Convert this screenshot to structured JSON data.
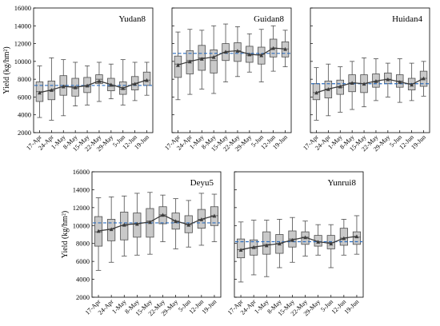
{
  "chart_data": [
    {
      "type": "box",
      "title": "Yudan8",
      "ylabel": "Yield (kg/hm²)",
      "ylim": [
        2000,
        16000
      ],
      "yticks": [
        2000,
        4000,
        6000,
        8000,
        10000,
        12000,
        14000,
        16000
      ],
      "categories": [
        "17-Apr",
        "24-Apr",
        "1-May",
        "8-May",
        "15-May",
        "22-May",
        "29-May",
        "5-Jun",
        "12-Jun",
        "19-Jun"
      ],
      "reference_line": 7300,
      "boxes": [
        {
          "min": 3700,
          "q1": 5500,
          "median": 6600,
          "q3": 7700,
          "max": 9500
        },
        {
          "min": 3400,
          "q1": 5700,
          "median": 6700,
          "q3": 7800,
          "max": 10400
        },
        {
          "min": 3900,
          "q1": 6200,
          "median": 7300,
          "q3": 8400,
          "max": 10200
        },
        {
          "min": 5000,
          "q1": 6100,
          "median": 7000,
          "q3": 8100,
          "max": 9900
        },
        {
          "min": 5100,
          "q1": 6500,
          "median": 7200,
          "q3": 8200,
          "max": 9500
        },
        {
          "min": 5500,
          "q1": 7500,
          "median": 8000,
          "q3": 8500,
          "max": 9900
        },
        {
          "min": 5800,
          "q1": 6700,
          "median": 7200,
          "q3": 8100,
          "max": 9700
        },
        {
          "min": 5100,
          "q1": 6300,
          "median": 6900,
          "q3": 7700,
          "max": 10200
        },
        {
          "min": 5600,
          "q1": 6800,
          "median": 7500,
          "q3": 8300,
          "max": 9900
        },
        {
          "min": 6200,
          "q1": 7300,
          "median": 7900,
          "q3": 8800,
          "max": 9900
        }
      ],
      "mean": [
        6500,
        6800,
        7200,
        7100,
        7300,
        7800,
        7400,
        7000,
        7500,
        7900
      ]
    },
    {
      "type": "box",
      "title": "Guidan8",
      "ylabel": "",
      "ylim": [
        2000,
        16000
      ],
      "yticks": [
        2000,
        4000,
        6000,
        8000,
        10000,
        12000,
        14000,
        16000
      ],
      "categories": [
        "17-Apr",
        "24-Apr",
        "1-May",
        "8-May",
        "15-May",
        "22-May",
        "29-May",
        "5-Jun",
        "12-Jun",
        "19-Jun"
      ],
      "reference_line": 10900,
      "boxes": [
        {
          "min": 5700,
          "q1": 8200,
          "median": 9700,
          "q3": 10600,
          "max": 13300
        },
        {
          "min": 6300,
          "q1": 8600,
          "median": 10100,
          "q3": 11200,
          "max": 13600
        },
        {
          "min": 6900,
          "q1": 9000,
          "median": 10400,
          "q3": 11800,
          "max": 13500
        },
        {
          "min": 6400,
          "q1": 8700,
          "median": 10100,
          "q3": 11300,
          "max": 14000
        },
        {
          "min": 7700,
          "q1": 10100,
          "median": 11000,
          "q3": 12000,
          "max": 14200
        },
        {
          "min": 8300,
          "q1": 10000,
          "median": 11200,
          "q3": 12100,
          "max": 13900
        },
        {
          "min": 8800,
          "q1": 9900,
          "median": 10700,
          "q3": 11700,
          "max": 13100
        },
        {
          "min": 7700,
          "q1": 9700,
          "median": 10800,
          "q3": 11600,
          "max": 13600
        },
        {
          "min": 8900,
          "q1": 10500,
          "median": 11500,
          "q3": 12500,
          "max": 14000
        },
        {
          "min": 9400,
          "q1": 10500,
          "median": 11400,
          "q3": 12200,
          "max": 13500
        }
      ],
      "mean": [
        9600,
        10000,
        10300,
        10500,
        11100,
        11200,
        10800,
        10700,
        11500,
        11400
      ]
    },
    {
      "type": "box",
      "title": "Huidan4",
      "ylabel": "",
      "ylim": [
        2000,
        16000
      ],
      "yticks": [
        2000,
        4000,
        6000,
        8000,
        10000,
        12000,
        14000,
        16000
      ],
      "categories": [
        "17-Apr",
        "24-Apr",
        "1-May",
        "8-May",
        "15-May",
        "22-May",
        "29-May",
        "5-Jun",
        "12-Jun",
        "19-Jun"
      ],
      "reference_line": 7500,
      "boxes": [
        {
          "min": 3400,
          "q1": 5700,
          "median": 6500,
          "q3": 7500,
          "max": 9300
        },
        {
          "min": 3900,
          "q1": 5900,
          "median": 6900,
          "q3": 7800,
          "max": 9700
        },
        {
          "min": 4300,
          "q1": 6300,
          "median": 7100,
          "q3": 7900,
          "max": 9400
        },
        {
          "min": 4600,
          "q1": 6600,
          "median": 7600,
          "q3": 8500,
          "max": 10000
        },
        {
          "min": 4900,
          "q1": 6500,
          "median": 7500,
          "q3": 8500,
          "max": 10400
        },
        {
          "min": 5600,
          "q1": 7100,
          "median": 7700,
          "q3": 8600,
          "max": 10300
        },
        {
          "min": 6000,
          "q1": 7500,
          "median": 8000,
          "q3": 8700,
          "max": 9800
        },
        {
          "min": 5400,
          "q1": 7100,
          "median": 7800,
          "q3": 8500,
          "max": 10300
        },
        {
          "min": 5600,
          "q1": 6800,
          "median": 7500,
          "q3": 8100,
          "max": 9800
        },
        {
          "min": 6100,
          "q1": 7200,
          "median": 8100,
          "q3": 8900,
          "max": 10000
        }
      ],
      "mean": [
        6500,
        6900,
        7200,
        7600,
        7500,
        7800,
        8000,
        7700,
        7400,
        8100
      ]
    },
    {
      "type": "box",
      "title": "Deyu5",
      "ylabel": "Yield (kg/hm²)",
      "ylim": [
        2000,
        16000
      ],
      "yticks": [
        2000,
        4000,
        6000,
        8000,
        10000,
        12000,
        14000,
        16000
      ],
      "categories": [
        "17-Apr",
        "24-Apr",
        "1-May",
        "8-May",
        "15-May",
        "22-May",
        "29-May",
        "5-Jun",
        "12-Jun",
        "19-Jun"
      ],
      "reference_line": 10300,
      "boxes": [
        {
          "min": 5000,
          "q1": 7700,
          "median": 9300,
          "q3": 11000,
          "max": 13100
        },
        {
          "min": 5900,
          "q1": 8300,
          "median": 9600,
          "q3": 10700,
          "max": 13200
        },
        {
          "min": 6600,
          "q1": 8400,
          "median": 10000,
          "q3": 11500,
          "max": 13300
        },
        {
          "min": 6700,
          "q1": 8700,
          "median": 10200,
          "q3": 11400,
          "max": 13600
        },
        {
          "min": 6800,
          "q1": 8700,
          "median": 10500,
          "q3": 11900,
          "max": 13700
        },
        {
          "min": 8200,
          "q1": 10200,
          "median": 11200,
          "q3": 12100,
          "max": 13400
        },
        {
          "min": 7400,
          "q1": 9600,
          "median": 10500,
          "q3": 11400,
          "max": 13000
        },
        {
          "min": 7600,
          "q1": 9200,
          "median": 10100,
          "q3": 11100,
          "max": 12800
        },
        {
          "min": 7800,
          "q1": 9700,
          "median": 10700,
          "q3": 11800,
          "max": 13600
        },
        {
          "min": 8200,
          "q1": 10000,
          "median": 11100,
          "q3": 12100,
          "max": 13500
        }
      ],
      "mean": [
        9400,
        9600,
        10100,
        10200,
        10400,
        11200,
        10500,
        10100,
        10700,
        11100
      ]
    },
    {
      "type": "box",
      "title": "Yunrui8",
      "ylabel": "",
      "ylim": [
        2000,
        16000
      ],
      "yticks": [
        2000,
        4000,
        6000,
        8000,
        10000,
        12000,
        14000,
        16000
      ],
      "categories": [
        "17-Apr",
        "24-Apr",
        "1-May",
        "8-May",
        "15-May",
        "22-May",
        "29-May",
        "5-Jun",
        "12-Jun",
        "19-Jun"
      ],
      "reference_line": 8200,
      "boxes": [
        {
          "min": 3700,
          "q1": 6400,
          "median": 7300,
          "q3": 8500,
          "max": 10400
        },
        {
          "min": 4500,
          "q1": 6700,
          "median": 7500,
          "q3": 8400,
          "max": 10600
        },
        {
          "min": 4300,
          "q1": 6800,
          "median": 7900,
          "q3": 9300,
          "max": 10600
        },
        {
          "min": 5300,
          "q1": 6900,
          "median": 8000,
          "q3": 9000,
          "max": 10700
        },
        {
          "min": 5900,
          "q1": 7600,
          "median": 8500,
          "q3": 9400,
          "max": 10900
        },
        {
          "min": 6600,
          "q1": 7900,
          "median": 8700,
          "q3": 9300,
          "max": 10500
        },
        {
          "min": 6700,
          "q1": 7700,
          "median": 8200,
          "q3": 8900,
          "max": 10100
        },
        {
          "min": 5300,
          "q1": 7400,
          "median": 8100,
          "q3": 8900,
          "max": 10100
        },
        {
          "min": 6700,
          "q1": 7800,
          "median": 8600,
          "q3": 9700,
          "max": 10700
        },
        {
          "min": 6800,
          "q1": 7900,
          "median": 8700,
          "q3": 9300,
          "max": 11100
        }
      ],
      "mean": [
        7300,
        7600,
        7800,
        8000,
        8400,
        8700,
        8200,
        8000,
        8600,
        8800
      ]
    }
  ],
  "colors": {
    "box_fill": "#c9c9c9",
    "box_stroke": "#4d4d4d",
    "mean_line": "#3c3c3c",
    "reference_line": "#2f6fbf",
    "axis": "#000000"
  }
}
